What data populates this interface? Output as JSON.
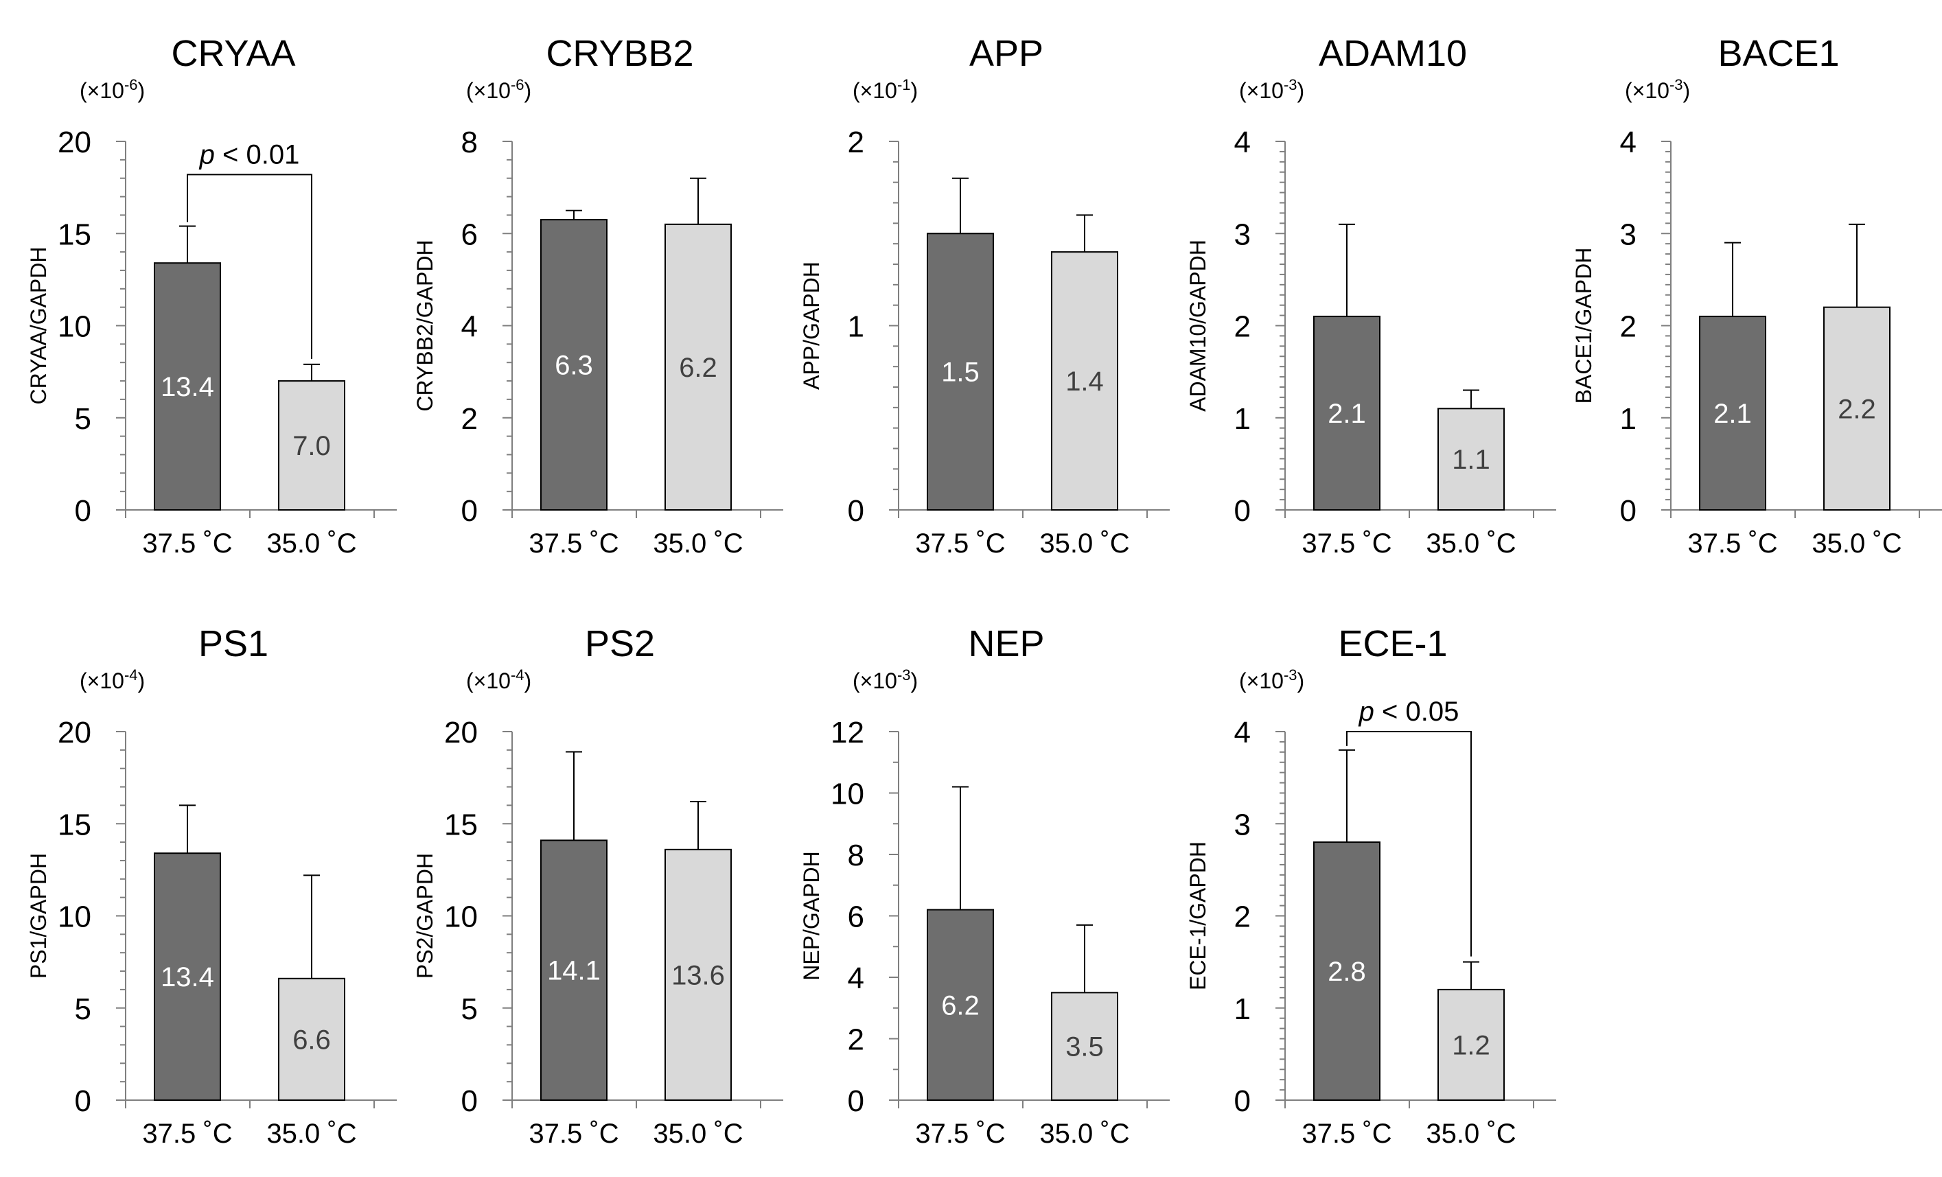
{
  "chart_data": [
    {
      "type": "bar",
      "title": "CRYAA",
      "ylabel": "CRYAA/GAPDH",
      "scale": "(×10-6)",
      "scale_base": "(×10",
      "scale_exp": "-6",
      "scale_close": ")",
      "ylim": [
        0,
        20
      ],
      "yticks": [
        "0",
        "5",
        "10",
        "15",
        "20"
      ],
      "ytick_values": [
        0,
        5,
        10,
        15,
        20
      ],
      "minor_ticks": 4,
      "categories": [
        "37.5 ˚C",
        "35.0 ˚C"
      ],
      "values": [
        13.4,
        7.0
      ],
      "value_labels": [
        "13.4",
        "7.0"
      ],
      "error_upper": [
        15.4,
        7.9
      ],
      "colors": [
        "#6e6e6e",
        "#d9d9d9"
      ],
      "label_colors": [
        "#ffffff",
        "#404040"
      ],
      "significance": {
        "p_italic": "p",
        "p_rest": "< 0.01",
        "text": "p < 0.01",
        "top": 18.2
      }
    },
    {
      "type": "bar",
      "title": "CRYBB2",
      "ylabel": "CRYBB2/GAPDH",
      "scale": "(×10-6)",
      "scale_base": "(×10",
      "scale_exp": "-6",
      "scale_close": ")",
      "ylim": [
        0,
        8
      ],
      "yticks": [
        "0",
        "2",
        "4",
        "6",
        "8"
      ],
      "ytick_values": [
        0,
        2,
        4,
        6,
        8
      ],
      "minor_ticks": 4,
      "categories": [
        "37.5 ˚C",
        "35.0 ˚C"
      ],
      "values": [
        6.3,
        6.2
      ],
      "value_labels": [
        "6.3",
        "6.2"
      ],
      "error_upper": [
        6.5,
        7.2
      ],
      "colors": [
        "#6e6e6e",
        "#d9d9d9"
      ],
      "label_colors": [
        "#ffffff",
        "#404040"
      ],
      "significance": null
    },
    {
      "type": "bar",
      "title": "APP",
      "ylabel": "APP/GAPDH",
      "scale": "(×10-1)",
      "scale_base": "(×10",
      "scale_exp": "-1",
      "scale_close": ")",
      "ylim": [
        0,
        2
      ],
      "yticks": [
        "0",
        "1",
        "2"
      ],
      "ytick_values": [
        0,
        1,
        2
      ],
      "minor_ticks": 8,
      "categories": [
        "37.5 ˚C",
        "35.0 ˚C"
      ],
      "values": [
        1.5,
        1.4
      ],
      "value_labels": [
        "1.5",
        "1.4"
      ],
      "error_upper": [
        1.8,
        1.6
      ],
      "colors": [
        "#6e6e6e",
        "#d9d9d9"
      ],
      "label_colors": [
        "#ffffff",
        "#404040"
      ],
      "significance": null
    },
    {
      "type": "bar",
      "title": "ADAM10",
      "ylabel": "ADAM10/GAPDH",
      "scale": "(×10-3)",
      "scale_base": "(×10",
      "scale_exp": "-3",
      "scale_close": ")",
      "ylim": [
        0,
        4
      ],
      "yticks": [
        "0",
        "1",
        "2",
        "3",
        "4"
      ],
      "ytick_values": [
        0,
        1,
        2,
        3,
        4
      ],
      "minor_ticks": 8,
      "categories": [
        "37.5 ˚C",
        "35.0 ˚C"
      ],
      "values": [
        2.1,
        1.1
      ],
      "value_labels": [
        "2.1",
        "1.1"
      ],
      "error_upper": [
        3.1,
        1.3
      ],
      "colors": [
        "#6e6e6e",
        "#d9d9d9"
      ],
      "label_colors": [
        "#ffffff",
        "#404040"
      ],
      "significance": null
    },
    {
      "type": "bar",
      "title": "BACE1",
      "ylabel": "BACE1/GAPDH",
      "scale": "(×10-3)",
      "scale_base": "(×10",
      "scale_exp": "-3",
      "scale_close": ")",
      "ylim": [
        0,
        4
      ],
      "yticks": [
        "0",
        "1",
        "2",
        "3",
        "4"
      ],
      "ytick_values": [
        0,
        1,
        2,
        3,
        4
      ],
      "minor_ticks": 8,
      "categories": [
        "37.5 ˚C",
        "35.0 ˚C"
      ],
      "values": [
        2.1,
        2.2
      ],
      "value_labels": [
        "2.1",
        "2.2"
      ],
      "error_upper": [
        2.9,
        3.1
      ],
      "colors": [
        "#6e6e6e",
        "#d9d9d9"
      ],
      "label_colors": [
        "#ffffff",
        "#404040"
      ],
      "significance": null
    },
    {
      "type": "bar",
      "title": "PS1",
      "ylabel": "PS1/GAPDH",
      "scale": "(×10-4)",
      "scale_base": "(×10",
      "scale_exp": "-4",
      "scale_close": ")",
      "ylim": [
        0,
        20
      ],
      "yticks": [
        "0",
        "5",
        "10",
        "15",
        "20"
      ],
      "ytick_values": [
        0,
        5,
        10,
        15,
        20
      ],
      "minor_ticks": 4,
      "categories": [
        "37.5 ˚C",
        "35.0 ˚C"
      ],
      "values": [
        13.4,
        6.6
      ],
      "value_labels": [
        "13.4",
        "6.6"
      ],
      "error_upper": [
        16.0,
        12.2
      ],
      "colors": [
        "#6e6e6e",
        "#d9d9d9"
      ],
      "label_colors": [
        "#ffffff",
        "#404040"
      ],
      "significance": null
    },
    {
      "type": "bar",
      "title": "PS2",
      "ylabel": "PS2/GAPDH",
      "scale": "(×10-4)",
      "scale_base": "(×10",
      "scale_exp": "-4",
      "scale_close": ")",
      "ylim": [
        0,
        20
      ],
      "yticks": [
        "0",
        "5",
        "10",
        "15",
        "20"
      ],
      "ytick_values": [
        0,
        5,
        10,
        15,
        20
      ],
      "minor_ticks": 4,
      "categories": [
        "37.5 ˚C",
        "35.0 ˚C"
      ],
      "values": [
        14.1,
        13.6
      ],
      "value_labels": [
        "14.1",
        "13.6"
      ],
      "error_upper": [
        18.9,
        16.2
      ],
      "colors": [
        "#6e6e6e",
        "#d9d9d9"
      ],
      "label_colors": [
        "#ffffff",
        "#404040"
      ],
      "significance": null
    },
    {
      "type": "bar",
      "title": "NEP",
      "ylabel": "NEP/GAPDH",
      "scale": "(×10-3)",
      "scale_base": "(×10",
      "scale_exp": "-3",
      "scale_close": ")",
      "ylim": [
        0,
        12
      ],
      "yticks": [
        "0",
        "2",
        "4",
        "6",
        "8",
        "10",
        "12"
      ],
      "ytick_values": [
        0,
        2,
        4,
        6,
        8,
        10,
        12
      ],
      "minor_ticks": 1,
      "categories": [
        "37.5 ˚C",
        "35.0 ˚C"
      ],
      "values": [
        6.2,
        3.5
      ],
      "value_labels": [
        "6.2",
        "3.5"
      ],
      "error_upper": [
        10.2,
        5.7
      ],
      "colors": [
        "#6e6e6e",
        "#d9d9d9"
      ],
      "label_colors": [
        "#ffffff",
        "#404040"
      ],
      "significance": null
    },
    {
      "type": "bar",
      "title": "ECE-1",
      "ylabel": "ECE-1/GAPDH",
      "scale": "(×10-3)",
      "scale_base": "(×10",
      "scale_exp": "-3",
      "scale_close": ")",
      "ylim": [
        0,
        4
      ],
      "yticks": [
        "0",
        "1",
        "2",
        "3",
        "4"
      ],
      "ytick_values": [
        0,
        1,
        2,
        3,
        4
      ],
      "minor_ticks": 8,
      "categories": [
        "37.5 ˚C",
        "35.0 ˚C"
      ],
      "values": [
        2.8,
        1.2
      ],
      "value_labels": [
        "2.8",
        "1.2"
      ],
      "error_upper": [
        3.8,
        1.5
      ],
      "colors": [
        "#6e6e6e",
        "#d9d9d9"
      ],
      "label_colors": [
        "#ffffff",
        "#404040"
      ],
      "significance": {
        "p_italic": "p",
        "p_rest": "< 0.05",
        "text": "p < 0.05",
        "top": 4.0
      }
    }
  ]
}
